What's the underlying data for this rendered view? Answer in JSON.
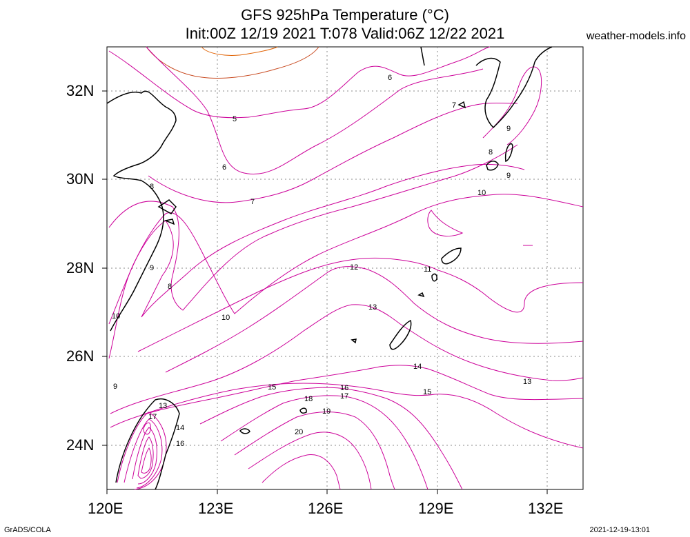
{
  "header": {
    "title_line1": "GFS 925hPa Temperature (°C)",
    "title_line2": "Init:00Z 12/19 2021 T:078 Valid:06Z 12/22 2021",
    "site": "weather-models.info"
  },
  "axes": {
    "y_ticks": [
      "32N",
      "30N",
      "28N",
      "26N",
      "24N"
    ],
    "x_ticks": [
      "120E",
      "123E",
      "126E",
      "129E",
      "132E"
    ]
  },
  "footer": {
    "left": "GrADS/COLA",
    "right": "2021-12-19-13:01"
  },
  "contour_labels": [
    "6",
    "7",
    "5",
    "6",
    "9",
    "8",
    "9",
    "7",
    "10",
    "8",
    "9",
    "11",
    "12",
    "13",
    "10",
    "8",
    "9",
    "10",
    "13",
    "14",
    "15",
    "16",
    "17",
    "15",
    "13",
    "18",
    "19",
    "17",
    "14",
    "20",
    "16"
  ],
  "colors": {
    "contour_cool": "#cc0099",
    "contour_warm": "#e06000",
    "coastline": "#000000",
    "grid": "#888888"
  }
}
